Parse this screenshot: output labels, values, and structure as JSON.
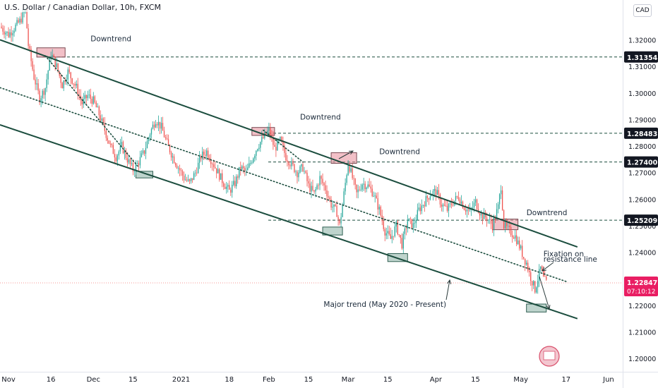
{
  "chart_data": {
    "type": "candlestick",
    "title": "U.S. Dollar / Canadian Dollar, 10h, FXCM",
    "currency": "CAD",
    "ylim": [
      1.195,
      1.335
    ],
    "y_ticks": [
      1.32,
      1.31,
      1.3,
      1.29,
      1.28,
      1.27,
      1.26,
      1.25,
      1.24,
      1.23,
      1.22,
      1.21,
      1.2
    ],
    "y_tick_labels": [
      "1.32000",
      "1.31000",
      "1.30000",
      "1.29000",
      "1.28000",
      "1.27000",
      "1.26000",
      "1.25000",
      "1.24000",
      "1.23000",
      "1.22000",
      "1.21000",
      "1.20000"
    ],
    "x_ticks": [
      {
        "label": "Nov",
        "t": 0
      },
      {
        "label": "16",
        "t": 15
      },
      {
        "label": "Dec",
        "t": 30
      },
      {
        "label": "15",
        "t": 44
      },
      {
        "label": "2021",
        "t": 61
      },
      {
        "label": "18",
        "t": 78
      },
      {
        "label": "Feb",
        "t": 92
      },
      {
        "label": "15",
        "t": 106
      },
      {
        "label": "Mar",
        "t": 120
      },
      {
        "label": "15",
        "t": 134
      },
      {
        "label": "Apr",
        "t": 151
      },
      {
        "label": "15",
        "t": 165
      },
      {
        "label": "May",
        "t": 181
      },
      {
        "label": "17",
        "t": 197
      },
      {
        "label": "Jun",
        "t": 212
      }
    ],
    "xlim": [
      -3,
      217
    ],
    "current_price": {
      "value": 1.22847,
      "label": "1.22847",
      "countdown": "07:10:12"
    },
    "levels": [
      {
        "value": 1.31354,
        "label": "1.31354"
      },
      {
        "value": 1.28483,
        "label": "1.28483"
      },
      {
        "value": 1.274,
        "label": "1.27400"
      },
      {
        "value": 1.25209,
        "label": "1.25209"
      }
    ],
    "price_path": [
      [
        -3,
        1.325
      ],
      [
        0,
        1.322
      ],
      [
        4,
        1.327
      ],
      [
        6,
        1.331
      ],
      [
        7,
        1.318
      ],
      [
        9,
        1.306
      ],
      [
        11,
        1.298
      ],
      [
        13,
        1.302
      ],
      [
        15,
        1.315
      ],
      [
        17,
        1.31
      ],
      [
        19,
        1.303
      ],
      [
        21,
        1.308
      ],
      [
        24,
        1.302
      ],
      [
        26,
        1.296
      ],
      [
        28,
        1.299
      ],
      [
        30,
        1.297
      ],
      [
        32,
        1.292
      ],
      [
        34,
        1.286
      ],
      [
        36,
        1.28
      ],
      [
        38,
        1.276
      ],
      [
        40,
        1.28
      ],
      [
        42,
        1.275
      ],
      [
        44,
        1.271
      ],
      [
        46,
        1.274
      ],
      [
        48,
        1.278
      ],
      [
        50,
        1.285
      ],
      [
        52,
        1.29
      ],
      [
        54,
        1.287
      ],
      [
        56,
        1.281
      ],
      [
        58,
        1.276
      ],
      [
        60,
        1.272
      ],
      [
        62,
        1.268
      ],
      [
        64,
        1.266
      ],
      [
        66,
        1.27
      ],
      [
        68,
        1.276
      ],
      [
        70,
        1.278
      ],
      [
        72,
        1.274
      ],
      [
        74,
        1.27
      ],
      [
        76,
        1.266
      ],
      [
        78,
        1.263
      ],
      [
        80,
        1.266
      ],
      [
        82,
        1.272
      ],
      [
        84,
        1.27
      ],
      [
        86,
        1.275
      ],
      [
        88,
        1.28
      ],
      [
        90,
        1.283
      ],
      [
        92,
        1.286
      ],
      [
        94,
        1.279
      ],
      [
        96,
        1.282
      ],
      [
        98,
        1.276
      ],
      [
        100,
        1.273
      ],
      [
        102,
        1.27
      ],
      [
        104,
        1.272
      ],
      [
        106,
        1.265
      ],
      [
        108,
        1.262
      ],
      [
        110,
        1.268
      ],
      [
        112,
        1.264
      ],
      [
        114,
        1.258
      ],
      [
        116,
        1.255
      ],
      [
        117,
        1.25
      ],
      [
        118,
        1.258
      ],
      [
        119,
        1.266
      ],
      [
        120,
        1.274
      ],
      [
        121,
        1.27
      ],
      [
        123,
        1.262
      ],
      [
        125,
        1.266
      ],
      [
        127,
        1.265
      ],
      [
        129,
        1.262
      ],
      [
        131,
        1.256
      ],
      [
        133,
        1.248
      ],
      [
        135,
        1.245
      ],
      [
        137,
        1.25
      ],
      [
        139,
        1.243
      ],
      [
        141,
        1.252
      ],
      [
        143,
        1.25
      ],
      [
        145,
        1.256
      ],
      [
        147,
        1.259
      ],
      [
        149,
        1.262
      ],
      [
        151,
        1.263
      ],
      [
        153,
        1.258
      ],
      [
        155,
        1.256
      ],
      [
        157,
        1.259
      ],
      [
        159,
        1.261
      ],
      [
        161,
        1.257
      ],
      [
        163,
        1.255
      ],
      [
        165,
        1.259
      ],
      [
        167,
        1.254
      ],
      [
        169,
        1.253
      ],
      [
        171,
        1.25
      ],
      [
        173,
        1.257
      ],
      [
        174,
        1.265
      ],
      [
        175,
        1.25
      ],
      [
        177,
        1.248
      ],
      [
        179,
        1.246
      ],
      [
        181,
        1.241
      ],
      [
        182,
        1.238
      ],
      [
        183,
        1.236
      ],
      [
        184,
        1.232
      ],
      [
        185,
        1.229
      ],
      [
        186,
        1.226
      ],
      [
        187,
        1.23
      ],
      [
        188,
        1.234
      ],
      [
        189,
        1.23
      ],
      [
        190,
        1.2285
      ]
    ],
    "trendlines": [
      {
        "kind": "solid",
        "t0": -3,
        "v0": 1.32,
        "t1": 201,
        "v1": 1.242
      },
      {
        "kind": "solid",
        "t0": -3,
        "v0": 1.288,
        "t1": 201,
        "v1": 1.215
      },
      {
        "kind": "dotted",
        "t0": -3,
        "v0": 1.302,
        "t1": 197,
        "v1": 1.229
      },
      {
        "kind": "dotted",
        "t0": 13,
        "v0": 1.314,
        "t1": 46,
        "v1": 1.272
      },
      {
        "kind": "dotted",
        "t0": 90,
        "v0": 1.286,
        "t1": 104,
        "v1": 1.274
      }
    ],
    "zones": [
      {
        "color": "red",
        "t0": 10,
        "t1": 20,
        "v0": 1.3135,
        "v1": 1.317
      },
      {
        "color": "green",
        "t0": 45,
        "t1": 51,
        "v0": 1.268,
        "v1": 1.2705
      },
      {
        "color": "red",
        "t0": 86,
        "t1": 94,
        "v0": 1.284,
        "v1": 1.287
      },
      {
        "color": "red",
        "t0": 114,
        "t1": 123,
        "v0": 1.2735,
        "v1": 1.2775
      },
      {
        "color": "green",
        "t0": 111,
        "t1": 118,
        "v0": 1.2465,
        "v1": 1.2495
      },
      {
        "color": "green",
        "t0": 134,
        "t1": 141,
        "v0": 1.2365,
        "v1": 1.2395
      },
      {
        "color": "red",
        "t0": 171,
        "t1": 180,
        "v0": 1.2485,
        "v1": 1.2525
      },
      {
        "color": "green",
        "t0": 183,
        "t1": 190,
        "v0": 1.2175,
        "v1": 1.2205
      }
    ],
    "annotations": [
      {
        "text": "Downtrend",
        "t": 29,
        "v": 1.3195
      },
      {
        "text": "Downtrend",
        "t": 103,
        "v": 1.29
      },
      {
        "text": "Downtrend",
        "t": 131,
        "v": 1.277
      },
      {
        "text": "Downtrend",
        "t": 183,
        "v": 1.254
      },
      {
        "text": "Fixation on",
        "t": 189,
        "v": 1.2385
      },
      {
        "text": "resistance line",
        "t": 189,
        "v": 1.2365
      },
      {
        "text": "Major trend (May 2020 - Present)",
        "t": 133,
        "v": 1.2195
      }
    ]
  }
}
